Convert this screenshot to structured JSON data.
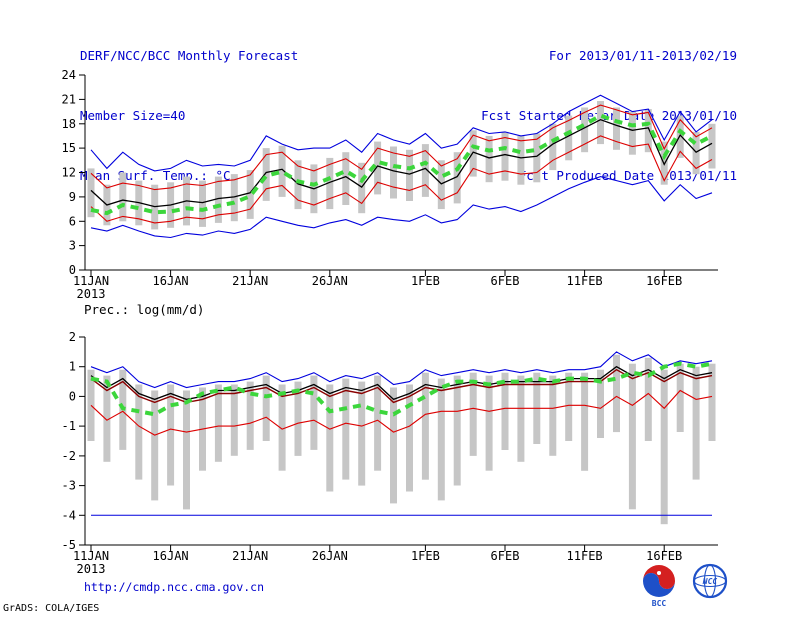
{
  "header": {
    "left": [
      "DERF/NCC/BCC Monthly Forecast",
      "Member Size=40",
      "Mean Surf. Temp.: °C"
    ],
    "right": [
      "For 2013/01/11-2013/02/19",
      "Fcst Started Refer Date 2013/01/10",
      "Fcst Produced Date 2013/01/11"
    ]
  },
  "footer": {
    "url": "http://cmdp.ncc.cma.gov.cn",
    "stamp": "GrADS: COLA/IGES",
    "logos": [
      {
        "name": "bcc-logo",
        "label": "BCC"
      },
      {
        "name": "ncc-logo",
        "label": "NCC"
      }
    ]
  },
  "colors": {
    "header_text": "#0000cc",
    "bar": "#c6c6c6",
    "blue_line": "#0000dd",
    "red_line": "#dd0000",
    "black_line": "#000000",
    "dark_red_line": "#8b0000",
    "green_dash": "#3cd63c"
  },
  "chart_data": [
    {
      "type": "line",
      "name": "mean-surface-temperature-chart",
      "title": "Mean Surf. Temp.: °C",
      "xlabel": "",
      "ylabel": "°C",
      "grid": false,
      "legend": "none",
      "days": 40,
      "ylim": [
        0,
        24
      ],
      "yticks": [
        0,
        3,
        6,
        9,
        12,
        15,
        18,
        21,
        24
      ],
      "xticks": [
        {
          "day": 0,
          "label": "11JAN",
          "sub": "2013"
        },
        {
          "day": 5,
          "label": "16JAN"
        },
        {
          "day": 10,
          "label": "21JAN"
        },
        {
          "day": 15,
          "label": "26JAN"
        },
        {
          "day": 21,
          "label": "1FEB"
        },
        {
          "day": 26,
          "label": "6FEB"
        },
        {
          "day": 31,
          "label": "11FEB"
        },
        {
          "day": 36,
          "label": "16FEB"
        }
      ],
      "bars": {
        "name": "ensemble-spread-bars",
        "top": [
          12.5,
          10.5,
          12.0,
          11.0,
          10.5,
          10.8,
          11.5,
          11.0,
          11.5,
          11.8,
          12.3,
          15.0,
          15.3,
          13.5,
          13.0,
          13.8,
          14.5,
          13.2,
          15.8,
          15.2,
          14.8,
          15.5,
          13.5,
          14.5,
          17.2,
          16.5,
          17.0,
          16.5,
          16.8,
          18.0,
          19.0,
          20.0,
          20.8,
          20.0,
          19.5,
          19.8,
          15.8,
          19.0,
          17.0,
          18.0
        ],
        "bottom": [
          6.5,
          5.5,
          6.0,
          5.5,
          5.0,
          5.2,
          5.5,
          5.3,
          5.8,
          6.0,
          6.3,
          8.5,
          9.0,
          7.5,
          7.0,
          7.5,
          8.0,
          7.0,
          9.3,
          8.8,
          8.5,
          9.0,
          7.5,
          8.2,
          11.5,
          10.8,
          11.0,
          10.5,
          10.8,
          12.3,
          13.5,
          14.5,
          15.5,
          14.8,
          14.2,
          14.5,
          10.5,
          13.8,
          11.8,
          12.5
        ]
      },
      "series": [
        {
          "name": "ensemble-max-line",
          "color": "#0000dd",
          "width": 1.1,
          "values": [
            14.8,
            12.5,
            14.5,
            13.0,
            12.2,
            12.5,
            13.5,
            12.8,
            13.0,
            12.8,
            13.5,
            16.5,
            15.5,
            14.8,
            15.0,
            15.0,
            16.0,
            14.5,
            16.8,
            16.0,
            15.5,
            16.8,
            15.0,
            15.5,
            17.5,
            16.8,
            17.0,
            16.5,
            16.8,
            18.0,
            19.5,
            20.5,
            21.5,
            20.5,
            19.5,
            19.8,
            16.0,
            19.5,
            17.0,
            18.5
          ]
        },
        {
          "name": "ensemble-min-line",
          "color": "#0000dd",
          "width": 1.1,
          "values": [
            5.2,
            4.8,
            5.5,
            4.8,
            4.2,
            4.0,
            4.5,
            4.3,
            4.8,
            4.5,
            5.0,
            6.5,
            6.0,
            5.5,
            5.2,
            5.8,
            6.2,
            5.5,
            6.5,
            6.2,
            6.0,
            6.8,
            5.8,
            6.2,
            8.0,
            7.5,
            7.8,
            7.2,
            8.0,
            9.0,
            10.0,
            10.8,
            11.5,
            11.0,
            10.5,
            11.0,
            8.5,
            10.5,
            8.8,
            9.5
          ]
        },
        {
          "name": "upper-red-line",
          "color": "#dd0000",
          "width": 1.1,
          "values": [
            11.9,
            10.1,
            10.7,
            10.4,
            9.9,
            10.1,
            10.6,
            10.4,
            10.9,
            11.1,
            11.7,
            14.2,
            14.5,
            12.8,
            12.2,
            13.0,
            13.7,
            12.4,
            15.0,
            14.4,
            14.0,
            14.7,
            12.8,
            13.7,
            16.6,
            15.9,
            16.3,
            15.9,
            16.1,
            17.5,
            18.4,
            19.4,
            20.3,
            19.7,
            19.1,
            19.4,
            14.9,
            18.5,
            16.4,
            17.5
          ]
        },
        {
          "name": "lower-red-line",
          "color": "#dd0000",
          "width": 1.1,
          "values": [
            7.8,
            6.0,
            6.6,
            6.3,
            5.8,
            6.0,
            6.5,
            6.3,
            6.8,
            7.0,
            7.5,
            10.0,
            10.4,
            8.6,
            8.0,
            8.8,
            9.5,
            8.2,
            10.8,
            10.2,
            9.8,
            10.5,
            8.6,
            9.5,
            12.5,
            11.8,
            12.2,
            11.8,
            12.0,
            13.5,
            14.5,
            15.5,
            16.5,
            15.8,
            15.2,
            15.5,
            11.0,
            14.6,
            12.5,
            13.6
          ]
        },
        {
          "name": "ensemble-mean-line",
          "color": "#000000",
          "width": 1.3,
          "values": [
            9.8,
            8.0,
            8.6,
            8.3,
            7.8,
            8.0,
            8.5,
            8.3,
            8.8,
            9.0,
            9.5,
            12.0,
            12.4,
            10.6,
            10.0,
            10.8,
            11.5,
            10.2,
            12.8,
            12.2,
            11.8,
            12.5,
            10.6,
            11.5,
            14.5,
            13.8,
            14.2,
            13.8,
            14.0,
            15.5,
            16.5,
            17.5,
            18.5,
            17.8,
            17.2,
            17.5,
            13.0,
            16.6,
            14.5,
            15.6
          ]
        },
        {
          "name": "green-dashed-line",
          "color": "#3cd63c",
          "width": 4,
          "dash": "8 6",
          "values": [
            7.4,
            7.0,
            8.0,
            7.6,
            7.1,
            7.2,
            7.6,
            7.4,
            7.9,
            8.3,
            9.1,
            11.6,
            12.1,
            10.9,
            10.5,
            11.3,
            12.2,
            11.0,
            13.3,
            12.8,
            12.5,
            13.2,
            11.5,
            12.4,
            15.2,
            14.7,
            15.0,
            14.5,
            14.8,
            15.9,
            16.9,
            17.9,
            19.0,
            18.3,
            17.8,
            18.0,
            14.0,
            17.1,
            15.5,
            16.5
          ]
        }
      ]
    },
    {
      "type": "line",
      "name": "precipitation-chart",
      "title": "Prec.: log(mm/d)",
      "xlabel": "",
      "ylabel": "log(mm/d)",
      "grid": false,
      "legend": "none",
      "days": 40,
      "ylim": [
        -5,
        2
      ],
      "yticks": [
        -5,
        -4,
        -3,
        -2,
        -1,
        0,
        1,
        2
      ],
      "xticks": [
        {
          "day": 0,
          "label": "11JAN",
          "sub": "2013"
        },
        {
          "day": 5,
          "label": "16JAN"
        },
        {
          "day": 10,
          "label": "21JAN"
        },
        {
          "day": 15,
          "label": "26JAN"
        },
        {
          "day": 21,
          "label": "1FEB"
        },
        {
          "day": 26,
          "label": "6FEB"
        },
        {
          "day": 31,
          "label": "11FEB"
        },
        {
          "day": 36,
          "label": "16FEB"
        }
      ],
      "bars": {
        "name": "ensemble-spread-bars",
        "top": [
          0.9,
          0.7,
          0.9,
          0.4,
          0.2,
          0.4,
          0.2,
          0.3,
          0.4,
          0.4,
          0.5,
          0.7,
          0.4,
          0.5,
          0.7,
          0.4,
          0.6,
          0.5,
          0.7,
          0.3,
          0.4,
          0.8,
          0.6,
          0.7,
          0.8,
          0.7,
          0.8,
          0.7,
          0.8,
          0.7,
          0.8,
          0.8,
          0.9,
          1.4,
          1.1,
          1.3,
          0.9,
          1.1,
          1.0,
          1.1
        ],
        "bottom": [
          -1.5,
          -2.2,
          -1.8,
          -2.8,
          -3.5,
          -3.0,
          -3.8,
          -2.5,
          -2.2,
          -2.0,
          -1.8,
          -1.5,
          -2.5,
          -2.0,
          -1.8,
          -3.2,
          -2.8,
          -3.0,
          -2.5,
          -3.6,
          -3.2,
          -2.8,
          -3.5,
          -3.0,
          -2.0,
          -2.5,
          -1.8,
          -2.2,
          -1.6,
          -2.0,
          -1.5,
          -2.5,
          -1.4,
          -1.2,
          -3.8,
          -1.5,
          -4.3,
          -1.2,
          -2.8,
          -1.5
        ]
      },
      "series": [
        {
          "name": "floor-min-line",
          "color": "#0000dd",
          "width": 1.0,
          "constant": -4
        },
        {
          "name": "upper-blue-line",
          "color": "#0000dd",
          "width": 1.1,
          "values": [
            1.0,
            0.8,
            1.0,
            0.5,
            0.3,
            0.5,
            0.3,
            0.4,
            0.5,
            0.5,
            0.6,
            0.8,
            0.5,
            0.6,
            0.8,
            0.5,
            0.7,
            0.6,
            0.8,
            0.4,
            0.5,
            0.9,
            0.7,
            0.8,
            0.9,
            0.8,
            0.9,
            0.8,
            0.9,
            0.8,
            0.9,
            0.9,
            1.0,
            1.5,
            1.2,
            1.4,
            1.0,
            1.2,
            1.1,
            1.2
          ]
        },
        {
          "name": "lower-red-line",
          "color": "#dd0000",
          "width": 1.1,
          "values": [
            -0.3,
            -0.8,
            -0.5,
            -1.0,
            -1.3,
            -1.1,
            -1.2,
            -1.1,
            -1.0,
            -1.0,
            -0.9,
            -0.7,
            -1.1,
            -0.9,
            -0.8,
            -1.1,
            -0.9,
            -1.0,
            -0.8,
            -1.2,
            -1.0,
            -0.6,
            -0.5,
            -0.5,
            -0.4,
            -0.5,
            -0.4,
            -0.4,
            -0.4,
            -0.4,
            -0.3,
            -0.3,
            -0.4,
            0.0,
            -0.3,
            0.1,
            -0.4,
            0.2,
            -0.1,
            0.0
          ]
        },
        {
          "name": "ensemble-mean-line",
          "color": "#000000",
          "width": 1.3,
          "values": [
            0.7,
            0.3,
            0.6,
            0.1,
            -0.1,
            0.1,
            -0.1,
            0.0,
            0.2,
            0.2,
            0.3,
            0.4,
            0.1,
            0.2,
            0.4,
            0.1,
            0.3,
            0.2,
            0.4,
            -0.1,
            0.1,
            0.4,
            0.3,
            0.4,
            0.5,
            0.4,
            0.5,
            0.5,
            0.5,
            0.5,
            0.6,
            0.6,
            0.6,
            1.0,
            0.7,
            0.9,
            0.6,
            0.9,
            0.7,
            0.8
          ]
        },
        {
          "name": "dark-red-line",
          "color": "#8b0000",
          "width": 1.4,
          "values": [
            0.6,
            0.2,
            0.5,
            0.0,
            -0.2,
            0.0,
            -0.2,
            -0.1,
            0.1,
            0.1,
            0.2,
            0.3,
            0.0,
            0.1,
            0.3,
            0.0,
            0.2,
            0.1,
            0.3,
            -0.2,
            0.0,
            0.3,
            0.2,
            0.3,
            0.4,
            0.3,
            0.4,
            0.4,
            0.4,
            0.4,
            0.5,
            0.5,
            0.5,
            0.9,
            0.6,
            0.8,
            0.5,
            0.8,
            0.6,
            0.7
          ]
        },
        {
          "name": "green-dashed-line",
          "color": "#3cd63c",
          "width": 4,
          "dash": "8 6",
          "values": [
            0.6,
            0.5,
            -0.4,
            -0.5,
            -0.6,
            -0.3,
            -0.2,
            0.1,
            0.2,
            0.3,
            0.1,
            0.0,
            0.1,
            0.2,
            0.1,
            -0.5,
            -0.4,
            -0.3,
            -0.5,
            -0.6,
            -0.3,
            0.0,
            0.3,
            0.5,
            0.5,
            0.4,
            0.5,
            0.5,
            0.6,
            0.5,
            0.6,
            0.6,
            0.5,
            0.6,
            0.8,
            0.7,
            1.0,
            1.1,
            1.0,
            1.1
          ]
        }
      ]
    }
  ]
}
